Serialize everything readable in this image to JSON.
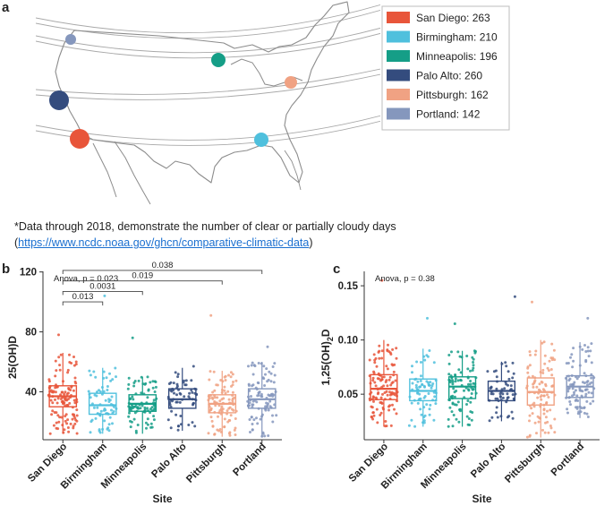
{
  "panels": {
    "a": "a",
    "b": "b",
    "c": "c"
  },
  "map": {
    "legend": [
      {
        "text": "San Diego: 263",
        "color": "#e8553a"
      },
      {
        "text": "Birmingham: 210",
        "color": "#4fc0dd"
      },
      {
        "text": "Minneapolis: 196",
        "color": "#159e87"
      },
      {
        "text": "Palo Alto: 260",
        "color": "#344c7e"
      },
      {
        "text": "Pittsburgh: 162",
        "color": "#f0a283"
      },
      {
        "text": "Portland: 142",
        "color": "#8597bd"
      }
    ],
    "note": "*Data through 2018, demonstrate the number of clear or partially cloudy days",
    "link_open": "(",
    "link": "https://www.ncdc.noaa.gov/ghcn/comparative-climatic-data",
    "link_close": ")"
  },
  "chart_data": [
    {
      "type": "box",
      "panel": "b",
      "xlabel": "Site",
      "ylabel": "25(OH)D",
      "categories": [
        "San Diego",
        "Birmingham",
        "Minneapolis",
        "Palo Alto",
        "Pittsburgh",
        "Portland"
      ],
      "colors": [
        "#e8553a",
        "#4fc0dd",
        "#159e87",
        "#344c7e",
        "#f0a283",
        "#8597bd"
      ],
      "ylim": [
        8,
        118
      ],
      "yticks": [
        "40",
        "80",
        "120"
      ],
      "stats": [
        {
          "min": 12,
          "q1": 30,
          "median": 37,
          "q3": 44,
          "max": 66,
          "n": 120,
          "spread": 78,
          "seed": 11
        },
        {
          "min": 12,
          "q1": 25,
          "median": 31,
          "q3": 39,
          "max": 56,
          "n": 70,
          "spread": 104,
          "seed": 23
        },
        {
          "min": 12,
          "q1": 27,
          "median": 32,
          "q3": 38,
          "max": 50,
          "n": 90,
          "spread": 76,
          "seed": 37
        },
        {
          "min": 14,
          "q1": 29,
          "median": 35,
          "q3": 42,
          "max": 56,
          "n": 65,
          "spread": 57,
          "seed": 41
        },
        {
          "min": 10,
          "q1": 26,
          "median": 32,
          "q3": 38,
          "max": 54,
          "n": 105,
          "spread": 91,
          "seed": 53
        },
        {
          "min": 10,
          "q1": 29,
          "median": 35,
          "q3": 42,
          "max": 60,
          "n": 100,
          "spread": 70,
          "seed": 67
        }
      ],
      "annotations": [
        {
          "text": "Anova, p = 0.023",
          "type": "anova"
        },
        {
          "text": "0.013",
          "from": "San Diego",
          "to": "Birmingham",
          "y": 100
        },
        {
          "text": "0.0031",
          "from": "San Diego",
          "to": "Minneapolis",
          "y": 107
        },
        {
          "text": "0.019",
          "from": "San Diego",
          "to": "Pittsburgh",
          "y": 114
        },
        {
          "text": "0.038",
          "from": "San Diego",
          "to": "Portland",
          "y": 121
        }
      ]
    },
    {
      "type": "box",
      "panel": "c",
      "xlabel": "Site",
      "ylabel_main": "1,25(OH)",
      "ylabel_sub": "2",
      "ylabel_tail": "D",
      "categories": [
        "San Diego",
        "Birmingham",
        "Minneapolis",
        "Palo Alto",
        "Pittsburgh",
        "Portland"
      ],
      "colors": [
        "#e8553a",
        "#4fc0dd",
        "#159e87",
        "#344c7e",
        "#f0a283",
        "#8597bd"
      ],
      "ylim": [
        0.008,
        0.16
      ],
      "yticks": [
        "0.05",
        "0.10",
        "0.15"
      ],
      "stats": [
        {
          "min": 0.02,
          "q1": 0.045,
          "median": 0.055,
          "q3": 0.068,
          "max": 0.1,
          "n": 120,
          "spread": 0.155,
          "seed": 71
        },
        {
          "min": 0.02,
          "q1": 0.044,
          "median": 0.053,
          "q3": 0.064,
          "max": 0.092,
          "n": 75,
          "spread": 0.12,
          "seed": 83
        },
        {
          "min": 0.02,
          "q1": 0.046,
          "median": 0.057,
          "q3": 0.066,
          "max": 0.09,
          "n": 95,
          "spread": 0.115,
          "seed": 97
        },
        {
          "min": 0.025,
          "q1": 0.044,
          "median": 0.053,
          "q3": 0.062,
          "max": 0.08,
          "n": 60,
          "spread": 0.14,
          "seed": 101
        },
        {
          "min": 0.01,
          "q1": 0.04,
          "median": 0.052,
          "q3": 0.065,
          "max": 0.1,
          "n": 100,
          "spread": 0.135,
          "seed": 113
        },
        {
          "min": 0.028,
          "q1": 0.047,
          "median": 0.057,
          "q3": 0.067,
          "max": 0.098,
          "n": 95,
          "spread": 0.12,
          "seed": 127
        }
      ],
      "annotations": [
        {
          "text": "Anova, p = 0.38",
          "type": "anova"
        }
      ]
    }
  ]
}
